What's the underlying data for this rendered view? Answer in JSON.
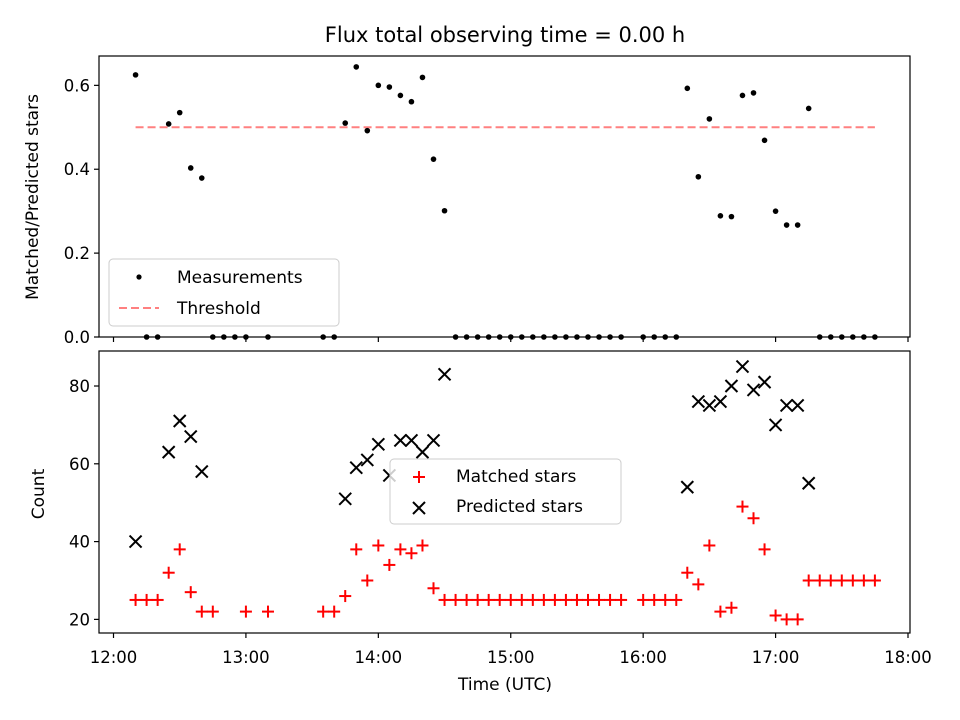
{
  "chart_data": [
    {
      "type": "scatter",
      "title": "Flux total observing time = 0.00 h",
      "xlabel": "",
      "ylabel": "Matched/Predicted stars",
      "xlim": [
        "12:00",
        "18:00"
      ],
      "ylim": [
        0.0,
        0.67
      ],
      "yticks": [
        0.0,
        0.2,
        0.4,
        0.6
      ],
      "legend": {
        "placement": "lower-left",
        "entries": [
          "Measurements",
          "Threshold"
        ]
      },
      "colors": {
        "measurements": "#000000",
        "threshold": "#ff8080"
      },
      "series": [
        {
          "name": "Measurements",
          "x": [
            "12:10",
            "12:15",
            "12:20",
            "12:25",
            "12:30",
            "12:35",
            "12:40",
            "12:45",
            "12:50",
            "12:55",
            "13:00",
            "13:10",
            "13:35",
            "13:40",
            "13:45",
            "13:50",
            "13:55",
            "14:00",
            "14:05",
            "14:10",
            "14:15",
            "14:20",
            "14:25",
            "14:30",
            "14:35",
            "14:40",
            "14:45",
            "14:50",
            "14:55",
            "15:00",
            "15:05",
            "15:10",
            "15:15",
            "15:20",
            "15:25",
            "15:30",
            "15:35",
            "15:40",
            "15:45",
            "15:50",
            "16:00",
            "16:05",
            "16:10",
            "16:15",
            "16:20",
            "16:25",
            "16:30",
            "16:35",
            "16:40",
            "16:45",
            "16:50",
            "16:55",
            "17:00",
            "17:05",
            "17:10",
            "17:15",
            "17:20",
            "17:25",
            "17:30",
            "17:35",
            "17:40",
            "17:45"
          ],
          "y": [
            0.625,
            0.0,
            0.0,
            0.508,
            0.535,
            0.403,
            0.379,
            0.0,
            0.0,
            0.0,
            0.0,
            0.0,
            0.0,
            0.0,
            0.51,
            0.644,
            0.492,
            0.6,
            0.596,
            0.576,
            0.561,
            0.619,
            0.424,
            0.301,
            0.0,
            0.0,
            0.0,
            0.0,
            0.0,
            0.0,
            0.0,
            0.0,
            0.0,
            0.0,
            0.0,
            0.0,
            0.0,
            0.0,
            0.0,
            0.0,
            0.0,
            0.0,
            0.0,
            0.0,
            0.593,
            0.382,
            0.52,
            0.289,
            0.287,
            0.576,
            0.582,
            0.469,
            0.3,
            0.267,
            0.267,
            0.545,
            0.0,
            0.0,
            0.0,
            0.0,
            0.0,
            0.0
          ]
        },
        {
          "name": "Threshold",
          "x": [
            "12:10",
            "17:45"
          ],
          "y": [
            0.5,
            0.5
          ]
        }
      ]
    },
    {
      "type": "scatter",
      "title": "",
      "xlabel": "Time (UTC)",
      "ylabel": "Count",
      "xlim": [
        "12:00",
        "18:00"
      ],
      "xticks": [
        "12:00",
        "13:00",
        "14:00",
        "15:00",
        "16:00",
        "17:00",
        "18:00"
      ],
      "ylim": [
        16.5,
        89
      ],
      "yticks": [
        20,
        40,
        60,
        80
      ],
      "legend": {
        "placement": "center",
        "entries": [
          "Matched stars",
          "Predicted stars"
        ]
      },
      "colors": {
        "matched": "#ff0000",
        "predicted": "#000000"
      },
      "series": [
        {
          "name": "Matched stars",
          "x": [
            "12:10",
            "12:15",
            "12:20",
            "12:25",
            "12:30",
            "12:35",
            "12:40",
            "12:45",
            "13:00",
            "13:10",
            "13:35",
            "13:40",
            "13:45",
            "13:50",
            "13:55",
            "14:00",
            "14:05",
            "14:10",
            "14:15",
            "14:20",
            "14:25",
            "14:30",
            "14:35",
            "14:40",
            "14:45",
            "14:50",
            "14:55",
            "15:00",
            "15:05",
            "15:10",
            "15:15",
            "15:20",
            "15:25",
            "15:30",
            "15:35",
            "15:40",
            "15:45",
            "15:50",
            "16:00",
            "16:05",
            "16:10",
            "16:15",
            "16:20",
            "16:25",
            "16:30",
            "16:35",
            "16:40",
            "16:45",
            "16:50",
            "16:55",
            "17:00",
            "17:05",
            "17:10",
            "17:15",
            "17:20",
            "17:25",
            "17:30",
            "17:35",
            "17:40",
            "17:45"
          ],
          "y": [
            25,
            25,
            25,
            32,
            38,
            27,
            22,
            22,
            22,
            22,
            22,
            22,
            26,
            38,
            30,
            39,
            34,
            38,
            37,
            39,
            28,
            25,
            25,
            25,
            25,
            25,
            25,
            25,
            25,
            25,
            25,
            25,
            25,
            25,
            25,
            25,
            25,
            25,
            25,
            25,
            25,
            25,
            32,
            29,
            39,
            22,
            23,
            49,
            46,
            38,
            21,
            20,
            20,
            30,
            30,
            30,
            30,
            30,
            30,
            30
          ]
        },
        {
          "name": "Predicted stars",
          "x": [
            "12:10",
            "12:25",
            "12:30",
            "12:35",
            "12:40",
            "13:45",
            "13:50",
            "13:55",
            "14:00",
            "14:05",
            "14:10",
            "14:15",
            "14:20",
            "14:25",
            "14:30",
            "16:20",
            "16:25",
            "16:30",
            "16:35",
            "16:40",
            "16:45",
            "16:50",
            "16:55",
            "17:00",
            "17:05",
            "17:10",
            "17:15"
          ],
          "y": [
            40,
            63,
            71,
            67,
            58,
            51,
            59,
            61,
            65,
            57,
            66,
            66,
            63,
            66,
            83,
            54,
            76,
            75,
            76,
            80,
            85,
            79,
            81,
            70,
            75,
            75,
            55
          ]
        }
      ]
    }
  ]
}
